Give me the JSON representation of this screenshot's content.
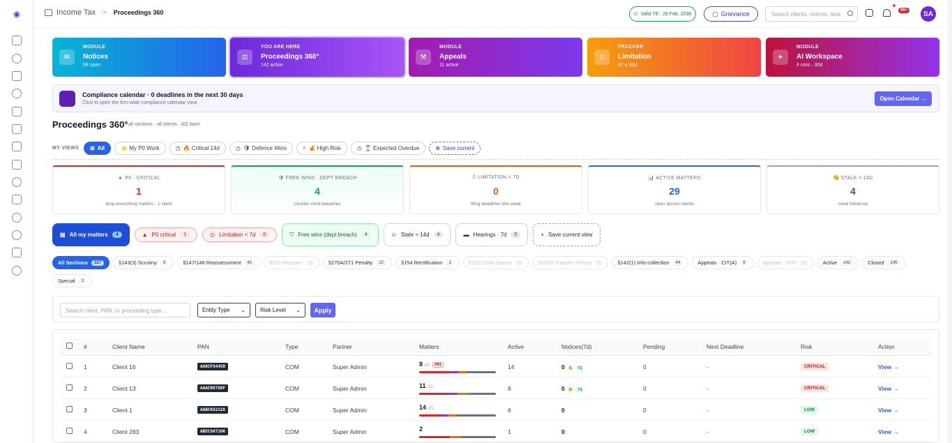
{
  "breadcrumb": {
    "root": "Income Tax",
    "separator": ">",
    "current": "Proceedings 360"
  },
  "topbar": {
    "valid_till": "Valid Till : 28 Feb, 2030",
    "grievance": "Grievance",
    "search_placeholder": "Search clients, notices, task",
    "notification_badge": "99+",
    "avatar": "SA"
  },
  "modules": [
    {
      "kicker": "MODULE",
      "name": "Notices",
      "sub": "98 open",
      "icon": "✉"
    },
    {
      "kicker": "YOU ARE HERE",
      "name": "Proceedings 360°",
      "sub": "142 active",
      "icon": "⚖"
    },
    {
      "kicker": "MODULE",
      "name": "Appeals",
      "sub": "11 active",
      "icon": "⚒"
    },
    {
      "kicker": "TRACKER",
      "name": "Limitation",
      "sub": "42 ≤ 30d",
      "icon": "⏱"
    },
    {
      "kicker": "MODULE",
      "name": "AI Workspace",
      "sub": "4 runs · 30d",
      "icon": "✦"
    }
  ],
  "calendar": {
    "heading": "Compliance calendar · 0 deadlines in the next 30 days",
    "sub": "Click to open the firm-wide compliance calendar view",
    "button": "Open Calendar →"
  },
  "page": {
    "title": "Proceedings 360°",
    "subtitle": "all sections · all clients · AO layer"
  },
  "views": {
    "label": "MY VIEWS",
    "items": [
      "All",
      "⭐ My P0 Work",
      "🔥 Critical 14d",
      "🛡 Defence Wins",
      "💰 High Risk",
      "⏳ Expected Overdue",
      "Save current"
    ]
  },
  "kpis": [
    {
      "label": "🔺 P0 · CRITICAL",
      "value": "1",
      "desc": "drop-everything matters · 1 client",
      "color": "#dc2626"
    },
    {
      "label": "🛡 FREE WINS · DEPT BREACH",
      "value": "4",
      "desc": "counter-clock breaches",
      "color": "#16a34a"
    },
    {
      "label": "⏱ LIMITATION < 7D",
      "value": "0",
      "desc": "filing deadlines this week",
      "color": "#ea580c"
    },
    {
      "label": "📊 ACTIVE MATTERS",
      "value": "29",
      "desc": "open across clients",
      "color": "#2563eb"
    },
    {
      "label": "🥱 STALE > 14D",
      "value": "4",
      "desc": "need follow-up",
      "color": "#475569"
    }
  ],
  "matter_chips": [
    {
      "label": "All my matters",
      "count": "4"
    },
    {
      "label": "P0 critical",
      "count": "1"
    },
    {
      "label": "Limitation < 7d",
      "count": "0"
    },
    {
      "label": "Free wins (dept breach)",
      "count": "4"
    },
    {
      "label": "Stale > 14d",
      "count": "4"
    },
    {
      "label": "Hearings · 7d",
      "count": "0"
    },
    {
      "label": "Save current view"
    }
  ],
  "section_chips": [
    {
      "label": "All Sections",
      "count": "127"
    },
    {
      "label": "§143(3) Scrutiny",
      "count": "8"
    },
    {
      "label": "§147/148 Reassessment",
      "count": "42"
    },
    {
      "label": "§263 Revision",
      "count": "0"
    },
    {
      "label": "§270A/271 Penalty",
      "count": "22"
    },
    {
      "label": "§154 Rectification",
      "count": "2"
    },
    {
      "label": "§132/133A Search",
      "count": "0"
    },
    {
      "label": "§92CA Transfer Pricing",
      "count": "0"
    },
    {
      "label": "§142(1) Info-collection",
      "count": "44"
    },
    {
      "label": "Appeals · CIT(A)",
      "count": "9"
    },
    {
      "label": "Appeals · ITAT",
      "count": "0"
    },
    {
      "label": "Active",
      "count": "142"
    },
    {
      "label": "Closed",
      "count": "145"
    },
    {
      "label": "Special",
      "count": "3"
    }
  ],
  "filters": {
    "search_placeholder": "Search client, PAN, or proceeding type...",
    "entity_type": "Entity Type",
    "risk_level": "Risk Level",
    "apply": "Apply"
  },
  "table": {
    "headers": [
      "#",
      "Client Name",
      "PAN",
      "Type",
      "Partner",
      "Matters",
      "Active",
      "Notices(7d)",
      "Pending",
      "Next Deadline",
      "Risk",
      "Action"
    ],
    "rows": [
      {
        "n": "1",
        "client": "Client 16",
        "pan": "AAKCP3445R",
        "type": "COM",
        "partner": "Super Admin",
        "matters": "8",
        "matters_total": "/10",
        "p01": "P01",
        "active": "14",
        "notices": "0",
        "tags": [
          "I1",
          "T1"
        ],
        "pending": "0",
        "deadline": "-",
        "risk": "CRITICAL",
        "action": "View →"
      },
      {
        "n": "2",
        "client": "Client 13",
        "pan": "AAACR9788F",
        "type": "COM",
        "partner": "Super Admin",
        "matters": "11",
        "matters_total": "/15",
        "p01": "",
        "active": "8",
        "notices": "0",
        "tags": [
          "I2",
          "T1"
        ],
        "pending": "0",
        "deadline": "-",
        "risk": "CRITICAL",
        "action": "View →"
      },
      {
        "n": "3",
        "client": "Client 1",
        "pan": "AABCK6212A",
        "type": "COM",
        "partner": "Super Admin",
        "matters": "14",
        "matters_total": "/15",
        "p01": "",
        "active": "6",
        "notices": "0",
        "tags": [],
        "pending": "0",
        "deadline": "-",
        "risk": "LOW",
        "action": "View →"
      },
      {
        "n": "4",
        "client": "Client 283",
        "pan": "ABECS8710K",
        "type": "COM",
        "partner": "Super Admin",
        "matters": "2",
        "matters_total": "",
        "p01": "",
        "active": "1",
        "notices": "0",
        "tags": [],
        "pending": "0",
        "deadline": "-",
        "risk": "LOW",
        "action": "View →"
      }
    ]
  }
}
